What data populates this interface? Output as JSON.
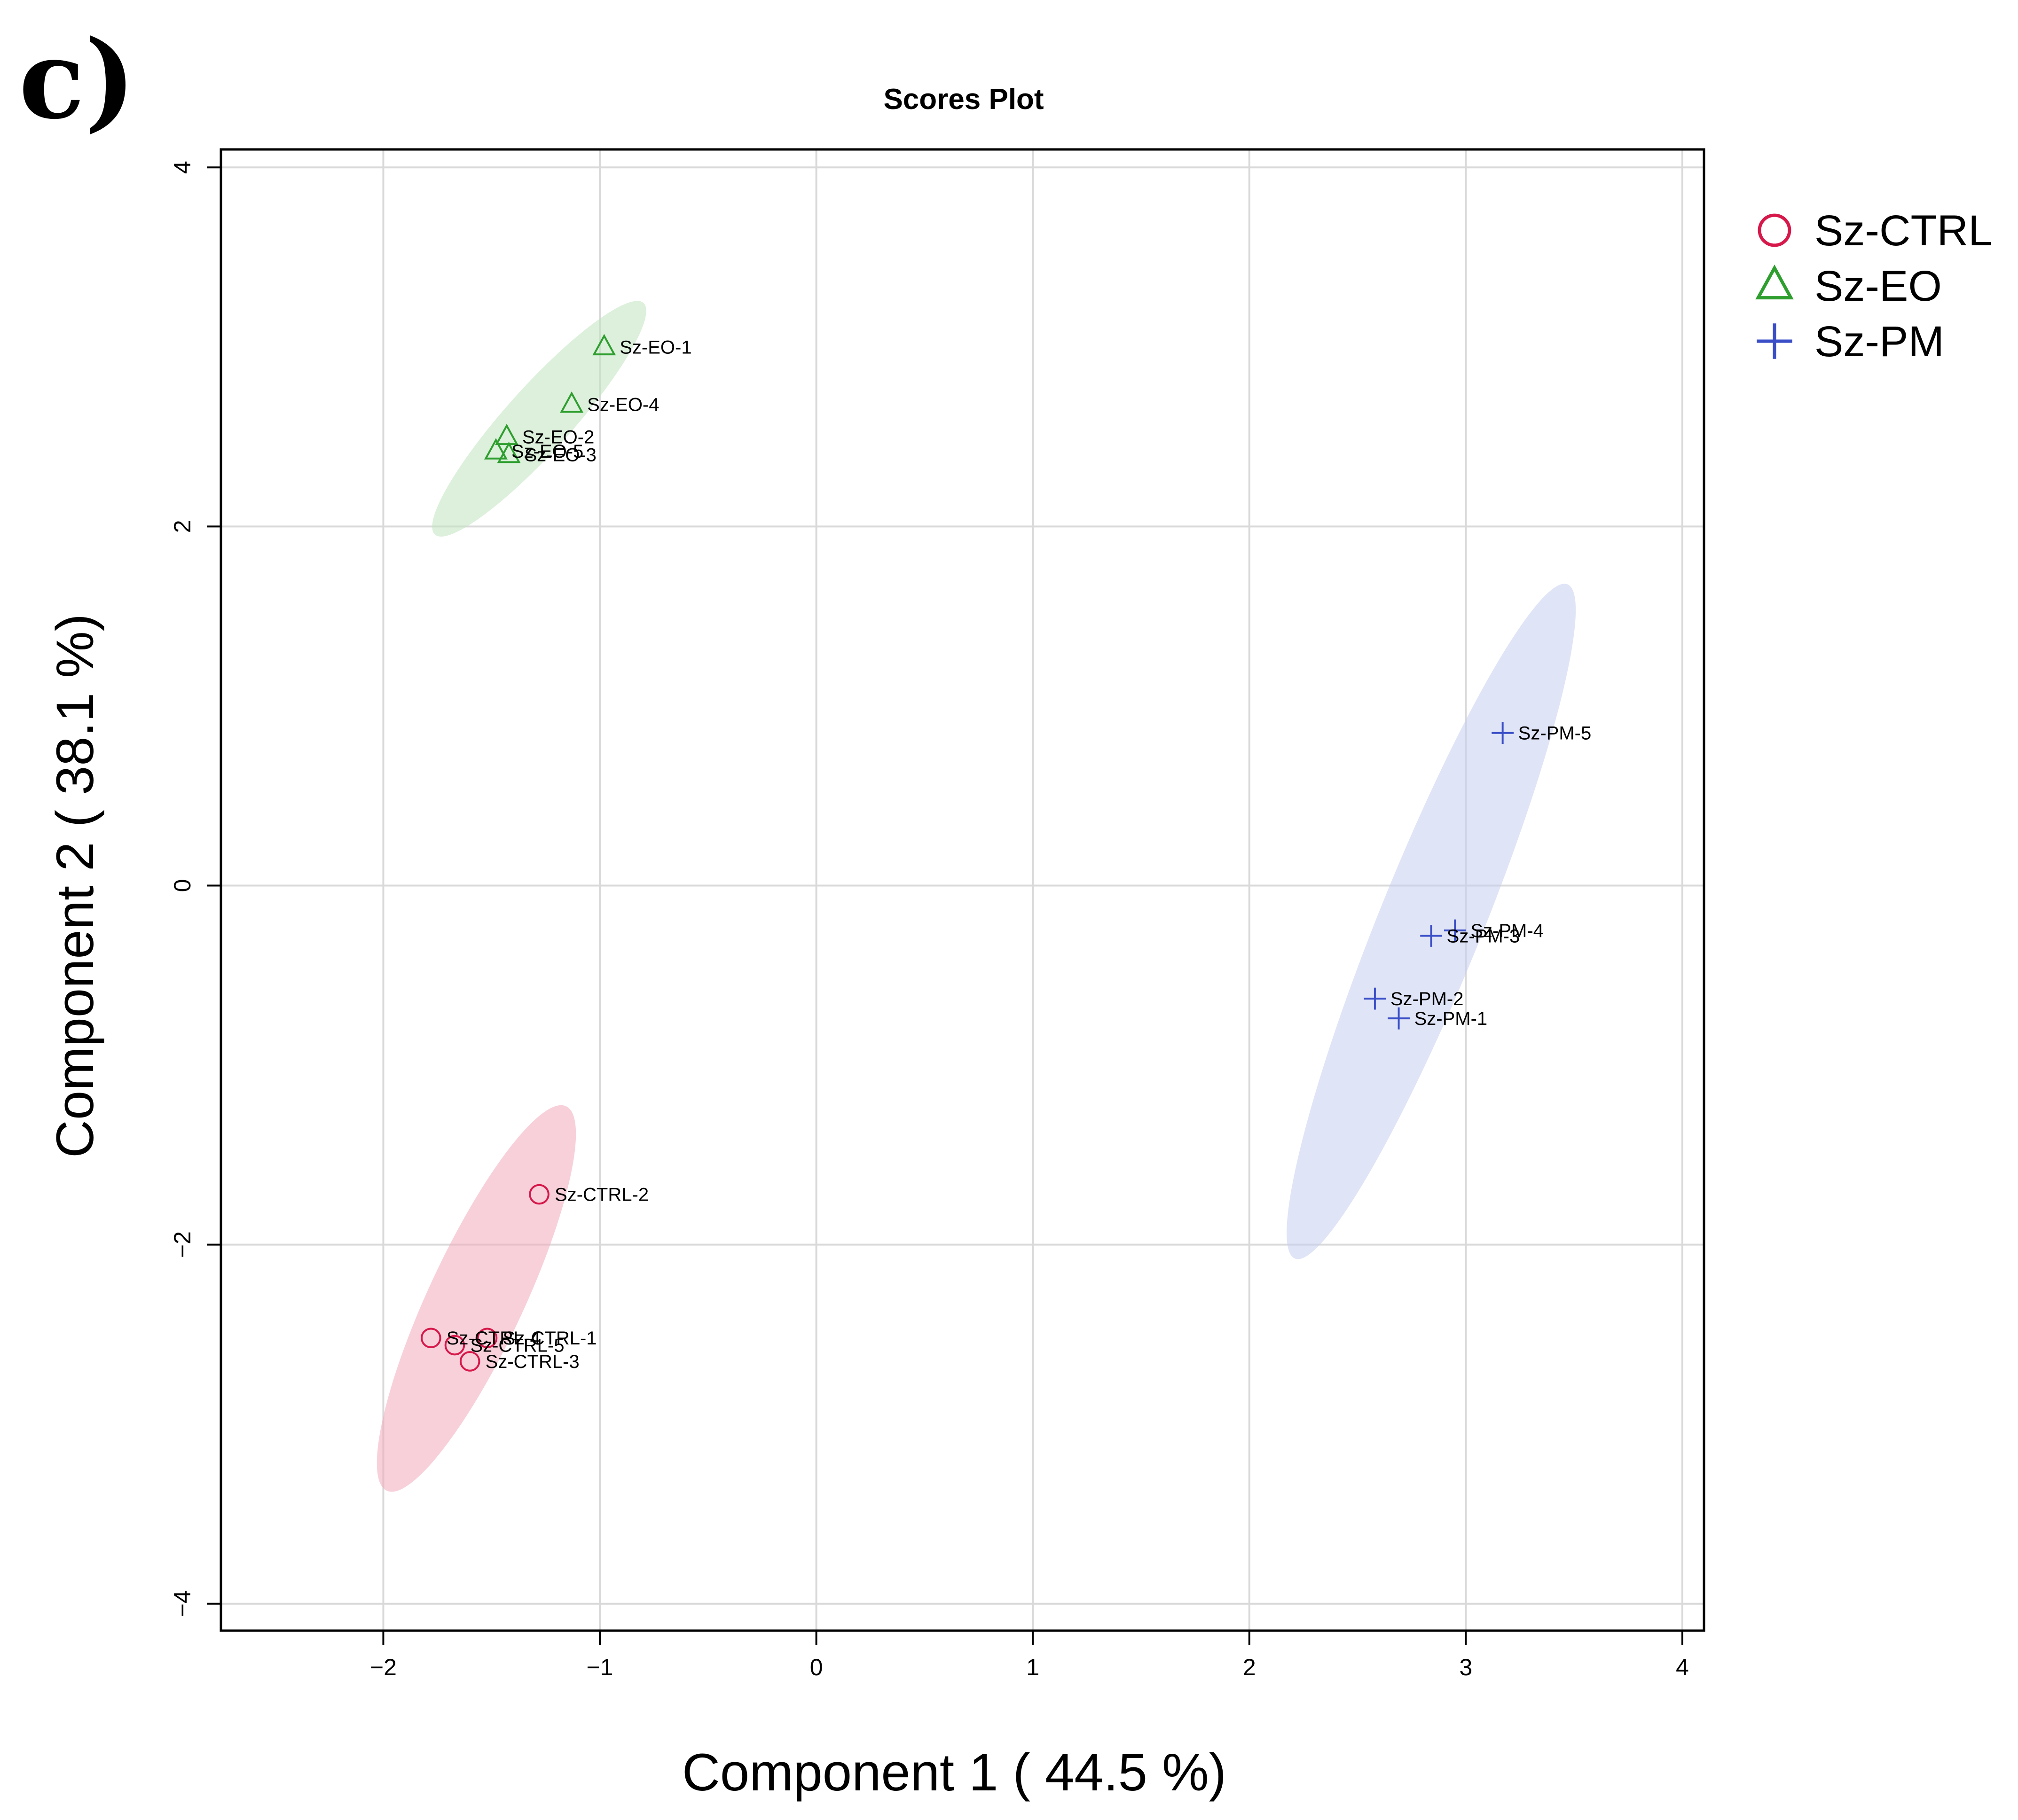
{
  "panel_label": "c)",
  "chart_data": {
    "type": "scatter",
    "title": "Scores Plot",
    "xlabel": "Component 1 ( 44.5 %)",
    "ylabel": "Component 2 ( 38.1 %)",
    "xlim": [
      -2.75,
      4.1
    ],
    "ylim": [
      -4.15,
      4.1
    ],
    "xticks": [
      -2,
      -1,
      0,
      1,
      2,
      3,
      4
    ],
    "yticks": [
      -4,
      -2,
      0,
      2,
      4
    ],
    "grid": true,
    "legend_position": "right",
    "series": [
      {
        "name": "Sz-CTRL",
        "marker": "circle",
        "color": "#d6184a",
        "fill": "#f2aabb",
        "ellipse": {
          "cx": -1.57,
          "cy": -2.3,
          "rx": 0.98,
          "ry": 0.22,
          "angle_deg": 65
        },
        "points": [
          {
            "label": "Sz-CTRL-2",
            "x": -1.28,
            "y": -1.72
          },
          {
            "label": "Sz-CTRL-1",
            "x": -1.52,
            "y": -2.52
          },
          {
            "label": "Sz-CTRL-4",
            "x": -1.78,
            "y": -2.52
          },
          {
            "label": "Sz-CTRL-5",
            "x": -1.67,
            "y": -2.56
          },
          {
            "label": "Sz-CTRL-3",
            "x": -1.6,
            "y": -2.65
          }
        ]
      },
      {
        "name": "Sz-EO",
        "marker": "triangle",
        "color": "#2e9e2e",
        "fill": "#bfe3bf",
        "ellipse": {
          "cx": -1.28,
          "cy": 2.6,
          "rx": 0.72,
          "ry": 0.15,
          "angle_deg": 48
        },
        "points": [
          {
            "label": "Sz-EO-1",
            "x": -0.98,
            "y": 3.0
          },
          {
            "label": "Sz-EO-4",
            "x": -1.13,
            "y": 2.68
          },
          {
            "label": "Sz-EO-2",
            "x": -1.43,
            "y": 2.5
          },
          {
            "label": "Sz-EO-5",
            "x": -1.48,
            "y": 2.42
          },
          {
            "label": "Sz-EO-3",
            "x": -1.42,
            "y": 2.4
          }
        ]
      },
      {
        "name": "Sz-PM",
        "marker": "plus",
        "color": "#3a4fc7",
        "fill": "#c5cdf0",
        "ellipse": {
          "cx": 2.84,
          "cy": -0.2,
          "rx": 1.68,
          "ry": 0.24,
          "angle_deg": 68
        },
        "points": [
          {
            "label": "Sz-PM-5",
            "x": 3.17,
            "y": 0.85
          },
          {
            "label": "Sz-PM-4",
            "x": 2.95,
            "y": -0.25
          },
          {
            "label": "Sz-PM-3",
            "x": 2.84,
            "y": -0.28
          },
          {
            "label": "Sz-PM-2",
            "x": 2.58,
            "y": -0.63
          },
          {
            "label": "Sz-PM-1",
            "x": 2.69,
            "y": -0.74
          }
        ]
      }
    ]
  }
}
